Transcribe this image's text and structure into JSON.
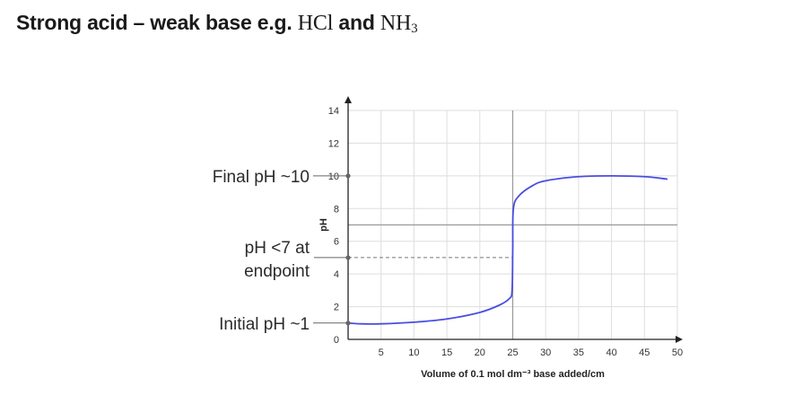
{
  "title": {
    "prefix": "Strong acid – weak base e.g.",
    "acid": "HCl",
    "joiner": "and",
    "base_main": "NH",
    "base_sub": "3"
  },
  "chart_data": {
    "type": "line",
    "xlabel": "Volume of 0.1 mol dm⁻³ base added/cm",
    "ylabel": "pH",
    "xlim": [
      0,
      50
    ],
    "ylim": [
      0,
      14
    ],
    "x_ticks": [
      "5",
      "10",
      "15",
      "20",
      "25",
      "30",
      "35",
      "40",
      "45",
      "50"
    ],
    "y_ticks": [
      "0",
      "2",
      "4",
      "6",
      "8",
      "10",
      "12",
      "14"
    ],
    "grid": true,
    "series": [
      {
        "color": "#4a4de0",
        "x": [
          0,
          2,
          5,
          10,
          15,
          20,
          23,
          24.5,
          24.9,
          25,
          25.1,
          26,
          28,
          30,
          35,
          40,
          45,
          48.5
        ],
        "y": [
          1.0,
          0.95,
          0.95,
          1.05,
          1.25,
          1.65,
          2.1,
          2.5,
          3.0,
          5.5,
          8.0,
          8.8,
          9.4,
          9.7,
          9.95,
          10.0,
          9.95,
          9.8
        ]
      }
    ],
    "annotations": [
      {
        "text": "Final pH ~10",
        "y": 10
      },
      {
        "text": "pH <7 at",
        "text2": "endpoint",
        "y": 5
      },
      {
        "text": "Initial pH ~1",
        "y": 1
      }
    ],
    "reference_lines": {
      "equivalence_x": 25,
      "neutral_y": 7,
      "endpoint_y": 5
    },
    "colors": {
      "curve": "#4a4de0",
      "grid": "#dedede",
      "axis": "#222222",
      "ref": "#9a9a9a"
    }
  }
}
